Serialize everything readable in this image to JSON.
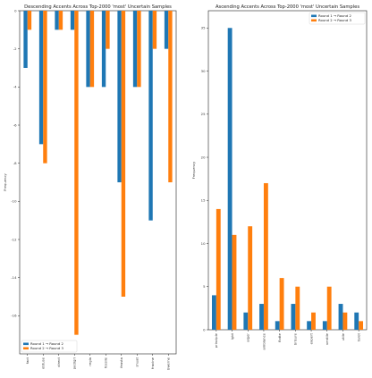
{
  "colors": {
    "round12": "#1f77b4",
    "round23": "#ff7f0e"
  },
  "chart_data": [
    {
      "type": "bar",
      "title": "Descending Accents Across Top-2000 'most' Uncertain Samples",
      "xlabel": "",
      "ylabel": "Frequency",
      "ylim": [
        -18,
        0
      ],
      "yticks": [
        0,
        -2,
        -4,
        -6,
        -8,
        -10,
        -12,
        -14,
        -16
      ],
      "grid": false,
      "legend_position": "lower-left",
      "categories": [
        "fact",
        "obtuse",
        "direct",
        "pedigri",
        "regla",
        "fossile",
        "feasta",
        "shuat",
        "fraclne",
        "bwerne"
      ],
      "series": [
        {
          "name": "Round 1 → Round 2",
          "values": [
            -3,
            -7,
            -1,
            -1,
            -4,
            -4,
            -9,
            -4,
            -11,
            -2
          ]
        },
        {
          "name": "Round 2 → Round 3",
          "values": [
            -1,
            -8,
            -1,
            -17,
            -4,
            -2,
            -15,
            -4,
            -2,
            -9
          ]
        }
      ]
    },
    {
      "type": "bar",
      "title": "Ascending Accents Across Top-2000 'most' Uncertain Samples",
      "xlabel": "",
      "ylabel": "Frequency",
      "ylim": [
        0,
        37
      ],
      "yticks": [
        0,
        5,
        10,
        15,
        20,
        25,
        30,
        35
      ],
      "grid": false,
      "legend_position": "top-right",
      "categories": [
        "principle",
        "lgbt",
        "alger",
        "ambiance",
        "flotte",
        "brisure",
        "expert",
        "ventile",
        "utile",
        "tarot"
      ],
      "series": [
        {
          "name": "Round 1 → Round 2",
          "values": [
            4,
            35,
            2,
            3,
            1,
            3,
            1,
            1,
            3,
            2
          ]
        },
        {
          "name": "Round 2 → Round 3",
          "values": [
            14,
            11,
            12,
            17,
            6,
            5,
            2,
            5,
            2,
            1
          ]
        }
      ]
    }
  ]
}
